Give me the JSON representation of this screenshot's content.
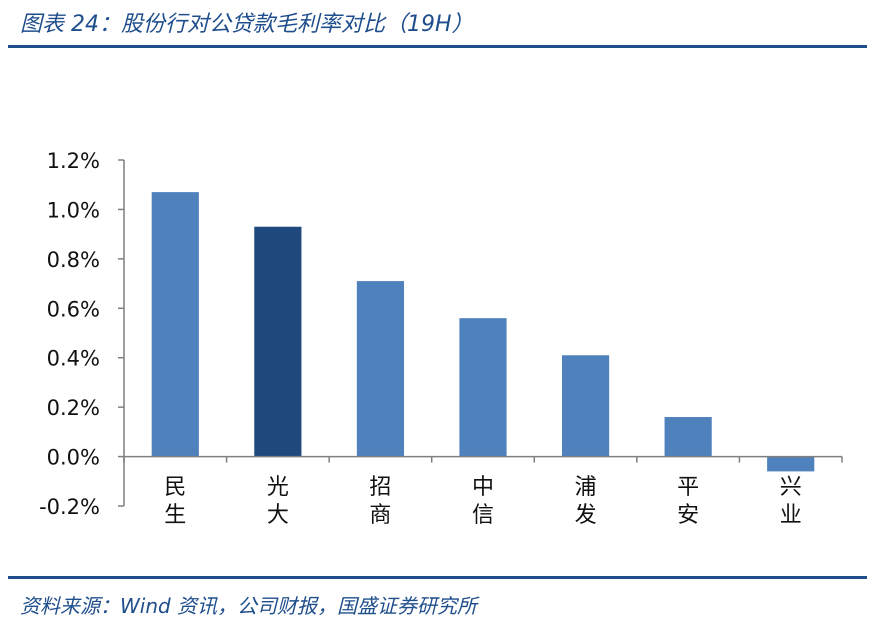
{
  "header": {
    "title": "图表 24：股份行对公贷款毛利率对比（19H）"
  },
  "footer": {
    "source": "资料来源：Wind 资讯，公司财报，国盛证券研究所"
  },
  "colors": {
    "bar": "#4f81bd",
    "highlight": "#1f497d",
    "axis": "#7f7f7f",
    "rule": "#1f4e8c"
  },
  "chart_data": {
    "type": "bar",
    "title": "",
    "xlabel": "",
    "ylabel": "",
    "categories": [
      "民生",
      "光大",
      "招商",
      "中信",
      "浦发",
      "平安",
      "兴业"
    ],
    "values": [
      1.07,
      0.93,
      0.71,
      0.56,
      0.41,
      0.16,
      -0.06
    ],
    "unit": "%",
    "highlight_category": "光大",
    "ylim": [
      -0.2,
      1.2
    ],
    "yticks": [
      -0.2,
      0.0,
      0.2,
      0.4,
      0.6,
      0.8,
      1.0,
      1.2
    ],
    "ytick_labels": [
      "-0.2%",
      "0.0%",
      "0.2%",
      "0.4%",
      "0.6%",
      "0.8%",
      "1.0%",
      "1.2%"
    ],
    "grid": false,
    "legend": "none"
  }
}
